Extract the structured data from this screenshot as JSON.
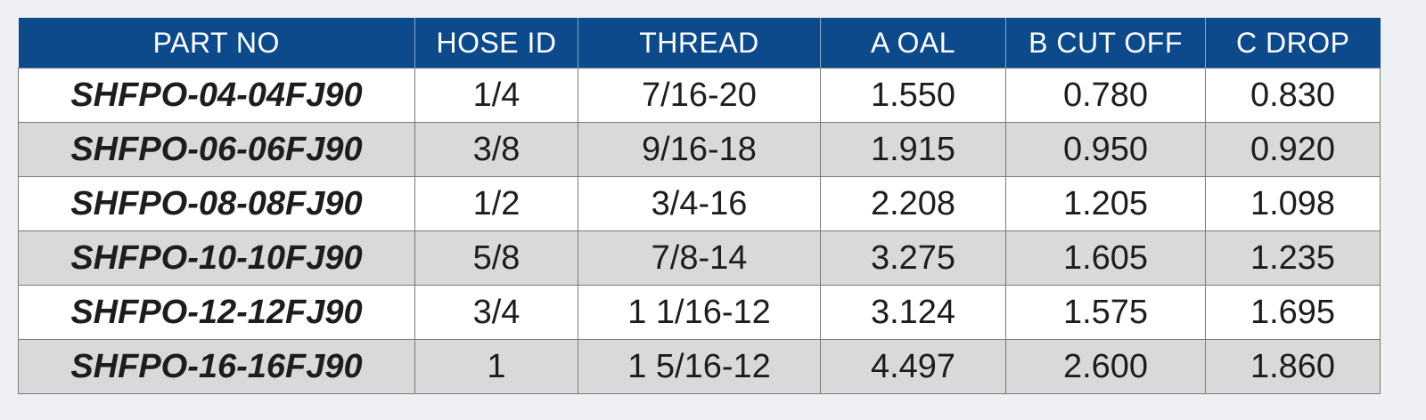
{
  "table": {
    "header": [
      "PART NO",
      "HOSE ID",
      "THREAD",
      "A OAL",
      "B CUT OFF",
      "C DROP"
    ],
    "rows": [
      [
        "SHFPO-04-04FJ90",
        "1/4",
        "7/16-20",
        "1.550",
        "0.780",
        "0.830"
      ],
      [
        "SHFPO-06-06FJ90",
        "3/8",
        "9/16-18",
        "1.915",
        "0.950",
        "0.920"
      ],
      [
        "SHFPO-08-08FJ90",
        "1/2",
        "3/4-16",
        "2.208",
        "1.205",
        "1.098"
      ],
      [
        "SHFPO-10-10FJ90",
        "5/8",
        "7/8-14",
        "3.275",
        "1.605",
        "1.235"
      ],
      [
        "SHFPO-12-12FJ90",
        "3/4",
        "1 1/16-12",
        "3.124",
        "1.575",
        "1.695"
      ],
      [
        "SHFPO-16-16FJ90",
        "1",
        "1 5/16-12",
        "4.497",
        "2.600",
        "1.860"
      ]
    ]
  }
}
